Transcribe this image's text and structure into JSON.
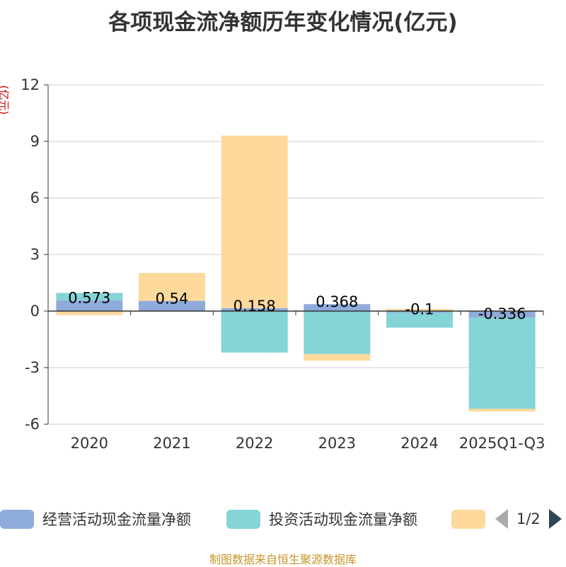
{
  "title": "各项现金流净额历年变化情况(亿元)",
  "unit_label": "(亿元)",
  "source": "制图数据来自恒生聚源数据库",
  "legend": {
    "page": "1/2",
    "items": [
      {
        "label": "经营活动现金流量净额",
        "color": "#8fabdb"
      },
      {
        "label": "投资活动现金流量净额",
        "color": "#85d4d7"
      },
      {
        "label": "",
        "color": "#fdd99b"
      }
    ]
  },
  "chart_data": {
    "type": "bar",
    "stacked": true,
    "title": "各项现金流净额历年变化情况(亿元)",
    "ylabel": "(亿元)",
    "categories": [
      "2020",
      "2021",
      "2022",
      "2023",
      "2024",
      "2025Q1-Q3"
    ],
    "ylim": [
      -6,
      12
    ],
    "yticks": [
      -6,
      -3,
      0,
      3,
      6,
      9,
      12
    ],
    "ytick_labels": [
      "-6",
      "-3",
      "0",
      "3",
      "6",
      "9",
      "12"
    ],
    "series": [
      {
        "name": "经营活动现金流量净额",
        "color": "#8fabdb",
        "values": [
          0.573,
          0.54,
          0.158,
          0.368,
          -0.1,
          -0.336
        ],
        "labels": [
          "0.573",
          "0.54",
          "0.158",
          "0.368",
          "-0.1",
          "-0.336"
        ]
      },
      {
        "name": "投资活动现金流量净额",
        "color": "#85d4d7",
        "values": [
          0.39,
          -0.02,
          -2.2,
          -2.28,
          -0.78,
          -4.85
        ]
      },
      {
        "name": "",
        "color": "#fdd99b",
        "values": [
          -0.22,
          1.48,
          9.15,
          -0.35,
          0.12,
          -0.14
        ]
      }
    ]
  }
}
